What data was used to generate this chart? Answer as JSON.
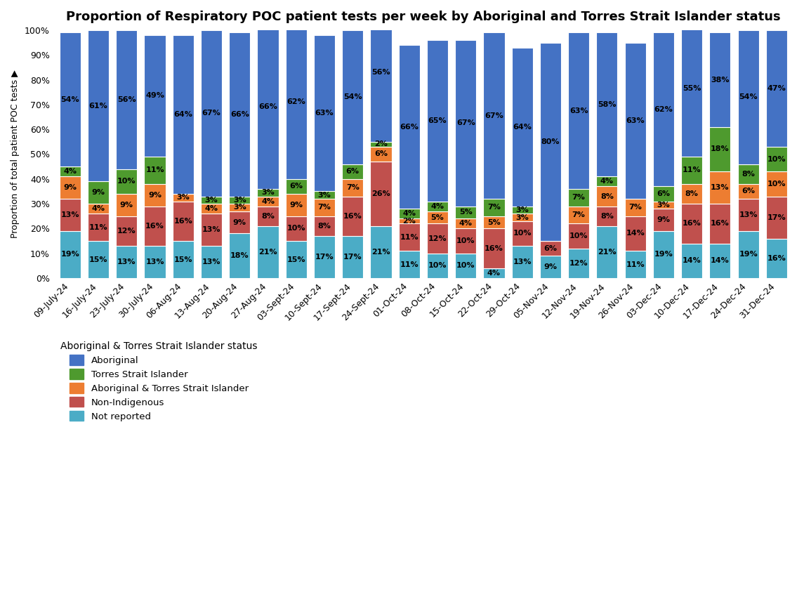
{
  "title": "Proportion of Respiratory POC patient tests per week by Aboriginal and Torres Strait Islander status",
  "ylabel": "Proportion of total patient POC tests ▶",
  "categories": [
    "09-July-24",
    "16-July-24",
    "23-July-24",
    "30-July-24",
    "06-Aug-24",
    "13-Aug-24",
    "20-Aug-24",
    "27-Aug-24",
    "03-Sept-24",
    "10-Sept-24",
    "17-Sept-24",
    "24-Sept-24",
    "01-Oct-24",
    "08-Oct-24",
    "15-Oct-24",
    "22-Oct-24",
    "29-Oct-24",
    "05-Nov-24",
    "12-Nov-24",
    "19-Nov-24",
    "26-Nov-24",
    "03-Dec-24",
    "10-Dec-24",
    "17-Dec-24",
    "24-Dec-24",
    "31-Dec-24"
  ],
  "series": {
    "Not reported": [
      19,
      15,
      13,
      13,
      15,
      13,
      18,
      21,
      15,
      17,
      17,
      21,
      11,
      10,
      10,
      4,
      13,
      9,
      12,
      21,
      11,
      19,
      14,
      14,
      19,
      16
    ],
    "Non-Indigenous": [
      13,
      11,
      12,
      16,
      16,
      13,
      9,
      8,
      10,
      8,
      16,
      26,
      11,
      12,
      10,
      16,
      10,
      6,
      10,
      8,
      14,
      9,
      16,
      16,
      13,
      17
    ],
    "Aboriginal & Torres Strait Islander": [
      9,
      4,
      9,
      9,
      3,
      4,
      3,
      4,
      9,
      7,
      7,
      6,
      2,
      5,
      4,
      5,
      3,
      0,
      7,
      8,
      7,
      3,
      8,
      13,
      6,
      10
    ],
    "Torres Strait Islander": [
      4,
      9,
      10,
      11,
      0,
      3,
      3,
      3,
      6,
      3,
      6,
      2,
      4,
      4,
      5,
      7,
      3,
      0,
      7,
      4,
      0,
      6,
      11,
      18,
      8,
      10
    ],
    "Aboriginal": [
      54,
      61,
      56,
      49,
      64,
      67,
      66,
      66,
      62,
      63,
      54,
      56,
      66,
      65,
      67,
      67,
      64,
      80,
      63,
      58,
      63,
      62,
      55,
      38,
      54,
      47
    ]
  },
  "colors": {
    "Aboriginal": "#4472C4",
    "Torres Strait Islander": "#4E9A2E",
    "Aboriginal & Torres Strait Islander": "#ED7D31",
    "Non-Indigenous": "#C0504D",
    "Not reported": "#4BACC6"
  },
  "series_order": [
    "Not reported",
    "Non-Indigenous",
    "Aboriginal & Torres Strait Islander",
    "Torres Strait Islander",
    "Aboriginal"
  ],
  "legend_order": [
    "Aboriginal",
    "Torres Strait Islander",
    "Aboriginal & Torres Strait Islander",
    "Non-Indigenous",
    "Not reported"
  ],
  "bar_width": 0.75,
  "title_fontsize": 13,
  "label_fontsize": 8.0,
  "axis_fontsize": 9,
  "legend_fontsize": 9.5,
  "legend_title_fontsize": 10
}
